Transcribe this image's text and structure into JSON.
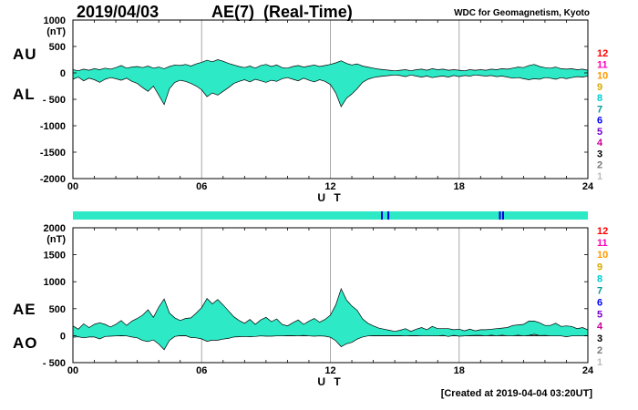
{
  "header": {
    "date": "2019/04/03",
    "title": "AE(7)  (Real-Time)",
    "credit": "WDC for Geomagnetism, Kyoto"
  },
  "footer": {
    "created": "[Created at 2019-04-04 03:20UT]"
  },
  "station_scale": {
    "entries": [
      {
        "n": "12",
        "color": "#ff0000"
      },
      {
        "n": "11",
        "color": "#ff00bb"
      },
      {
        "n": "10",
        "color": "#ff9900"
      },
      {
        "n": "9",
        "color": "#d4aa00"
      },
      {
        "n": "8",
        "color": "#00cccc"
      },
      {
        "n": "7",
        "color": "#009999"
      },
      {
        "n": "6",
        "color": "#0000ff"
      },
      {
        "n": "5",
        "color": "#7700cc"
      },
      {
        "n": "4",
        "color": "#cc0099"
      },
      {
        "n": "3",
        "color": "#000000"
      },
      {
        "n": "2",
        "color": "#777777"
      },
      {
        "n": "1",
        "color": "#bbbbbb"
      }
    ]
  },
  "availability_bar": {
    "color": "#2de9c6",
    "mark_color": "#0000dd",
    "marks_hours": [
      14.4,
      14.7,
      19.9,
      20.05
    ]
  },
  "chart_data": {
    "type": "area",
    "xlabel": "U T",
    "x_start_hour": 0,
    "x_end_hour": 24,
    "x_step_hours": 0.25,
    "xtick_hours": [
      0,
      6,
      12,
      18,
      24
    ],
    "xtick_labels": [
      "00",
      "06",
      "12",
      "18",
      "24"
    ],
    "grid_hours": [
      6,
      12,
      18
    ],
    "fill_color": "#2de9c6",
    "panels": [
      {
        "unit": "(nT)",
        "ylim": [
          -2000,
          1000
        ],
        "ytick_values": [
          1000,
          500,
          0,
          -500,
          -1000,
          -1500,
          -2000
        ],
        "ytick_labels": [
          "1000",
          "500",
          "0",
          "- 500",
          "-1000",
          "-1500",
          "-2000"
        ],
        "series": [
          {
            "name": "AU",
            "values": [
              60,
              40,
              70,
              50,
              80,
              60,
              90,
              70,
              100,
              140,
              90,
              110,
              120,
              100,
              130,
              90,
              110,
              80,
              120,
              150,
              140,
              160,
              130,
              170,
              200,
              240,
              210,
              250,
              220,
              180,
              150,
              120,
              100,
              130,
              90,
              140,
              160,
              120,
              150,
              100,
              90,
              120,
              140,
              110,
              130,
              150,
              120,
              140,
              160,
              190,
              230,
              180,
              150,
              170,
              130,
              110,
              90,
              70,
              60,
              50,
              40,
              50,
              60,
              40,
              60,
              70,
              50,
              80,
              60,
              70,
              50,
              60,
              50,
              40,
              60,
              50,
              60,
              50,
              70,
              60,
              80,
              70,
              90,
              110,
              100,
              140,
              160,
              120,
              100,
              90,
              110,
              80,
              70,
              80,
              60,
              70,
              50
            ]
          },
          {
            "name": "AL",
            "values": [
              -120,
              -80,
              -150,
              -100,
              -130,
              -180,
              -120,
              -90,
              -110,
              -140,
              -100,
              -160,
              -200,
              -280,
              -350,
              -250,
              -420,
              -600,
              -300,
              -180,
              -140,
              -160,
              -200,
              -250,
              -320,
              -450,
              -380,
              -420,
              -350,
              -280,
              -200,
              -160,
              -130,
              -170,
              -120,
              -150,
              -180,
              -140,
              -160,
              -110,
              -90,
              -120,
              -150,
              -100,
              -140,
              -170,
              -130,
              -160,
              -220,
              -380,
              -640,
              -480,
              -400,
              -300,
              -180,
              -120,
              -90,
              -70,
              -60,
              -50,
              -40,
              -50,
              -70,
              -40,
              -60,
              -80,
              -60,
              -90,
              -70,
              -60,
              -80,
              -50,
              -70,
              -50,
              -60,
              -40,
              -50,
              -60,
              -50,
              -70,
              -60,
              -80,
              -100,
              -90,
              -110,
              -130,
              -110,
              -120,
              -90,
              -100,
              -120,
              -90,
              -110,
              -90,
              -70,
              -80,
              -60
            ]
          }
        ]
      },
      {
        "unit": "(nT)",
        "ylim": [
          -500,
          2000
        ],
        "ytick_values": [
          2000,
          1500,
          1000,
          500,
          0,
          -500
        ],
        "ytick_labels": [
          "2000",
          "1500",
          "1000",
          "500",
          "0",
          "- 500"
        ],
        "series": [
          {
            "name": "AE",
            "values": [
              180,
              120,
              220,
              150,
              210,
              240,
              210,
              160,
              210,
              280,
              190,
              270,
              320,
              380,
              480,
              340,
              530,
              680,
              420,
              330,
              280,
              320,
              330,
              420,
              520,
              690,
              590,
              670,
              570,
              460,
              350,
              280,
              230,
              300,
              210,
              290,
              340,
              260,
              310,
              210,
              180,
              240,
              290,
              210,
              270,
              320,
              250,
              300,
              380,
              570,
              870,
              660,
              550,
              470,
              310,
              230,
              180,
              140,
              120,
              100,
              80,
              100,
              130,
              80,
              120,
              150,
              110,
              170,
              130,
              130,
              130,
              110,
              120,
              90,
              120,
              90,
              110,
              110,
              120,
              130,
              140,
              150,
              190,
              200,
              210,
              270,
              270,
              240,
              190,
              190,
              230,
              170,
              180,
              170,
              130,
              150,
              110
            ]
          },
          {
            "name": "AO",
            "values": [
              -30,
              -20,
              -40,
              -25,
              -25,
              -60,
              -15,
              -10,
              -5,
              0,
              -5,
              -25,
              -40,
              -90,
              -110,
              -80,
              -155,
              -260,
              -90,
              -15,
              0,
              0,
              -35,
              -40,
              -60,
              -105,
              -85,
              -85,
              -65,
              -50,
              -25,
              -20,
              -15,
              -20,
              -15,
              -5,
              -10,
              -10,
              -5,
              -5,
              0,
              0,
              -5,
              5,
              -5,
              -10,
              -5,
              -10,
              -30,
              -95,
              -205,
              -150,
              -125,
              -65,
              -25,
              -5,
              0,
              0,
              0,
              0,
              0,
              0,
              -5,
              0,
              0,
              -5,
              -5,
              -5,
              -5,
              5,
              -15,
              5,
              -10,
              -5,
              0,
              5,
              5,
              -5,
              10,
              -5,
              10,
              -5,
              -5,
              10,
              -5,
              5,
              25,
              0,
              5,
              -5,
              -5,
              -5,
              -20,
              -5,
              -5,
              -5,
              -5
            ]
          }
        ]
      }
    ]
  }
}
